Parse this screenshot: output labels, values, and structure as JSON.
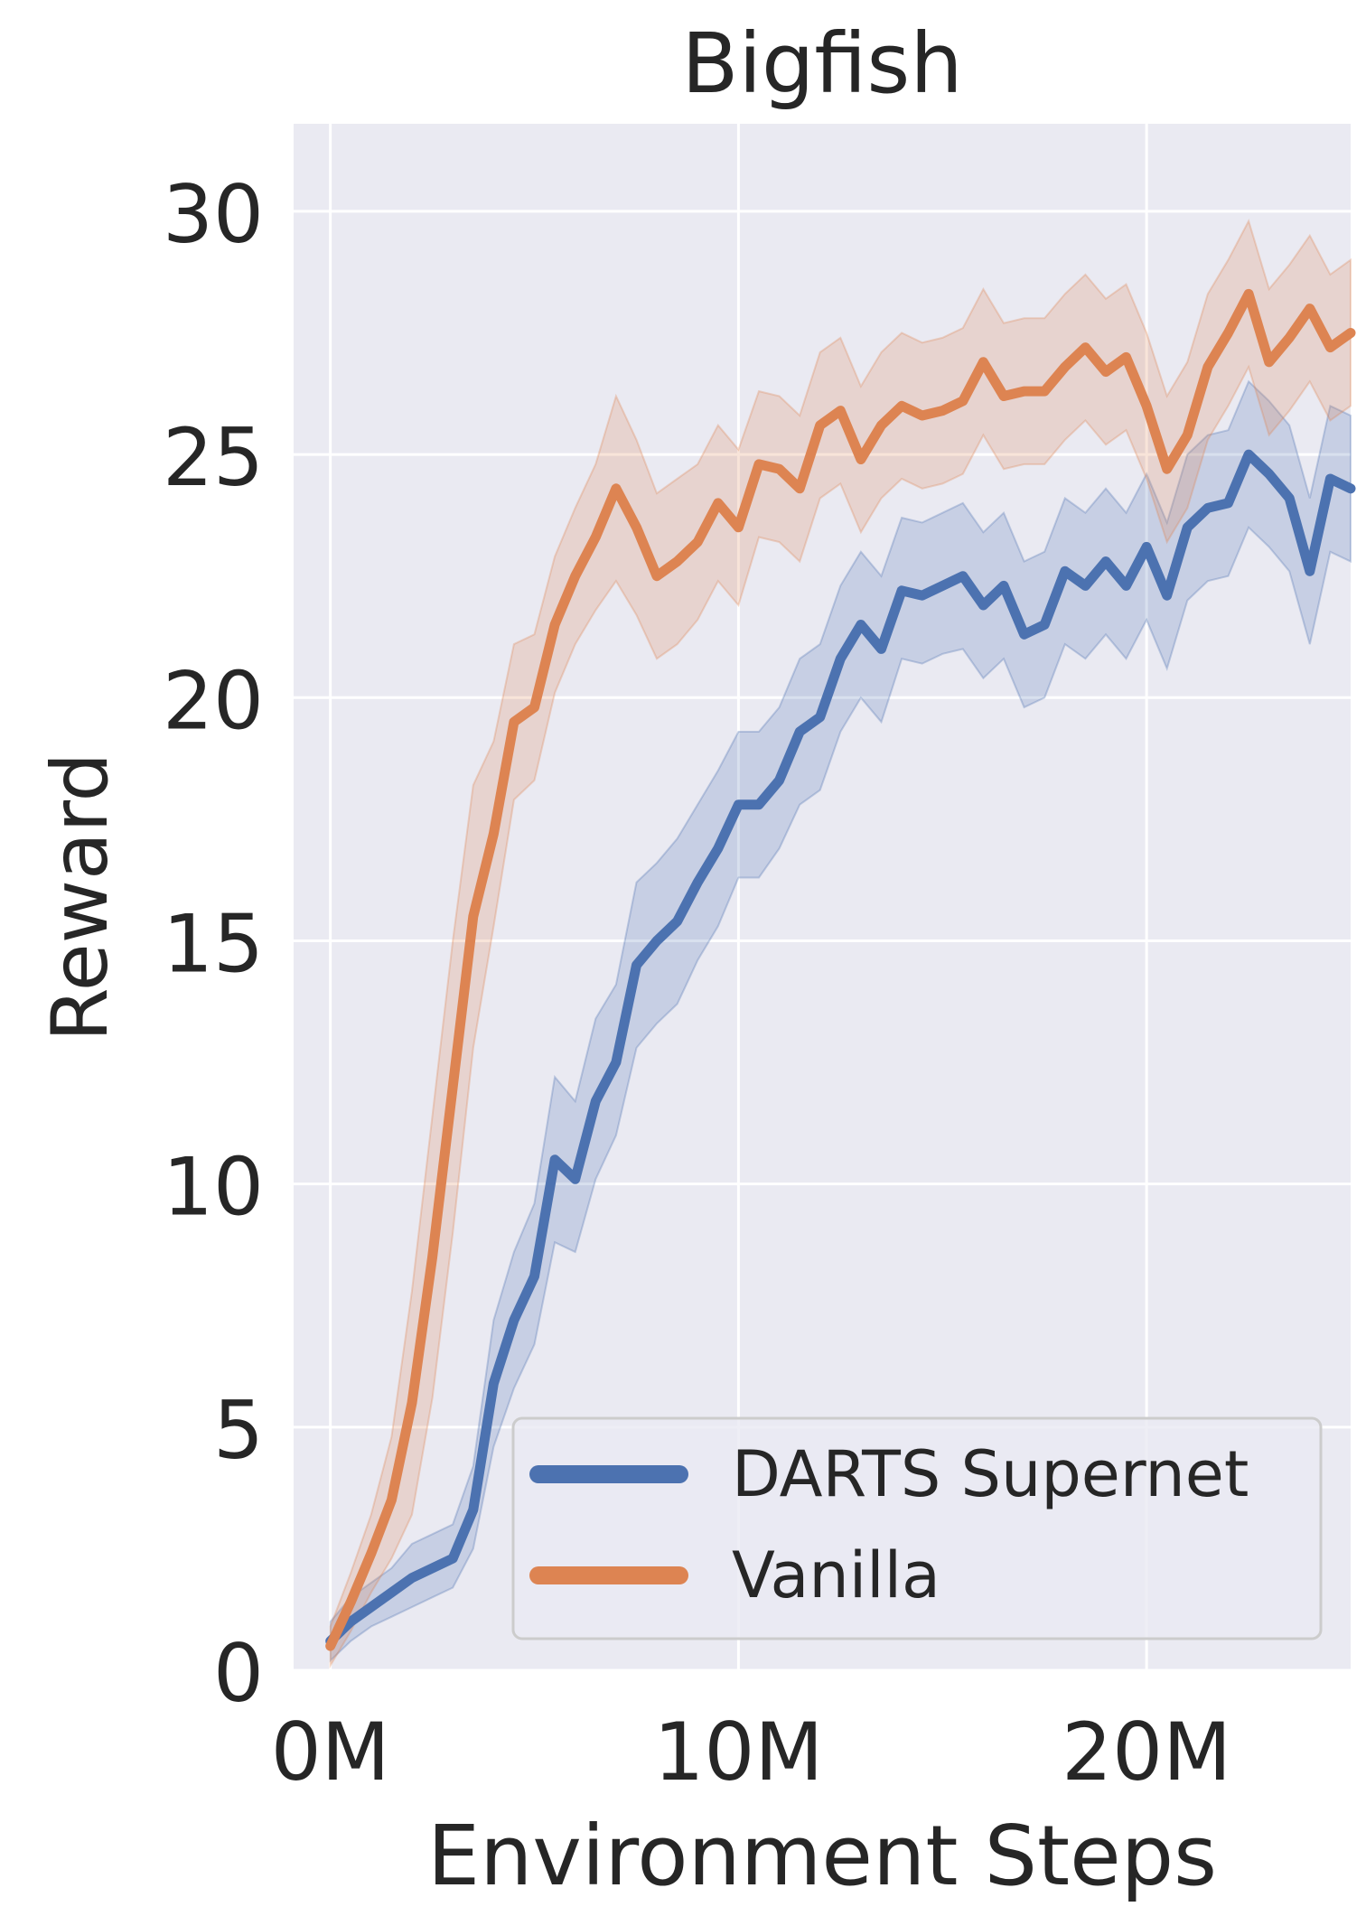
{
  "chart_data": {
    "type": "line",
    "title": "Bigfish",
    "xlabel": "Environment Steps",
    "ylabel": "Reward",
    "xlim": [
      -0.9,
      25
    ],
    "ylim": [
      0,
      31.8
    ],
    "x_ticks": [
      {
        "value": 0,
        "label": "0M"
      },
      {
        "value": 10,
        "label": "10M"
      },
      {
        "value": 20,
        "label": "20M"
      }
    ],
    "y_ticks": [
      {
        "value": 0,
        "label": "0"
      },
      {
        "value": 5,
        "label": "5"
      },
      {
        "value": 10,
        "label": "10"
      },
      {
        "value": 15,
        "label": "15"
      },
      {
        "value": 20,
        "label": "20"
      },
      {
        "value": 25,
        "label": "25"
      },
      {
        "value": 30,
        "label": "30"
      }
    ],
    "grid": true,
    "legend_position": "bottom-right",
    "series": [
      {
        "name": "DARTS Supernet",
        "color": "#4c72b0",
        "x": [
          0,
          0.5,
          1,
          1.5,
          2,
          2.5,
          3,
          3.5,
          4,
          4.5,
          5,
          5.5,
          6,
          6.5,
          7,
          7.5,
          8,
          8.5,
          9,
          9.5,
          10,
          10.5,
          11,
          11.5,
          12,
          12.5,
          13,
          13.5,
          14,
          14.5,
          15,
          15.5,
          16,
          16.5,
          17,
          17.5,
          18,
          18.5,
          19,
          19.5,
          20,
          20.5,
          21,
          21.5,
          22,
          22.5,
          23,
          23.5,
          24,
          24.5,
          25
        ],
        "y": [
          0.6,
          1.0,
          1.3,
          1.6,
          1.9,
          2.1,
          2.3,
          3.3,
          5.9,
          7.2,
          8.1,
          10.5,
          10.1,
          11.7,
          12.5,
          14.5,
          15.0,
          15.4,
          16.2,
          16.9,
          17.8,
          17.8,
          18.3,
          19.3,
          19.6,
          20.8,
          21.5,
          21.0,
          22.2,
          22.1,
          22.3,
          22.5,
          21.9,
          22.3,
          21.3,
          21.5,
          22.6,
          22.3,
          22.8,
          22.3,
          23.1,
          22.1,
          23.5,
          23.9,
          24.0,
          25.0,
          24.6,
          24.1,
          22.6,
          24.5,
          24.3
        ],
        "lower": [
          0.2,
          0.6,
          0.9,
          1.1,
          1.3,
          1.5,
          1.7,
          2.5,
          4.6,
          5.8,
          6.7,
          8.8,
          8.6,
          10.1,
          11.0,
          12.8,
          13.3,
          13.7,
          14.6,
          15.3,
          16.3,
          16.3,
          16.9,
          17.8,
          18.1,
          19.3,
          20.0,
          19.5,
          20.8,
          20.7,
          20.9,
          21.0,
          20.4,
          20.8,
          19.8,
          20.0,
          21.1,
          20.8,
          21.3,
          20.8,
          21.6,
          20.6,
          22.0,
          22.4,
          22.5,
          23.5,
          23.1,
          22.6,
          21.1,
          23.0,
          22.8
        ],
        "upper": [
          1.0,
          1.5,
          1.8,
          2.1,
          2.6,
          2.8,
          3.0,
          4.2,
          7.2,
          8.6,
          9.6,
          12.2,
          11.7,
          13.4,
          14.1,
          16.2,
          16.6,
          17.1,
          17.8,
          18.5,
          19.3,
          19.3,
          19.8,
          20.8,
          21.1,
          22.3,
          23.0,
          22.5,
          23.7,
          23.6,
          23.8,
          24.0,
          23.4,
          23.8,
          22.8,
          23.0,
          24.1,
          23.8,
          24.3,
          23.8,
          24.6,
          23.6,
          25.0,
          25.4,
          25.5,
          26.5,
          26.1,
          25.6,
          24.1,
          26.0,
          25.8
        ]
      },
      {
        "name": "Vanilla",
        "color": "#dd8452",
        "x": [
          0,
          0.5,
          1,
          1.5,
          2,
          2.5,
          3,
          3.5,
          4,
          4.5,
          5,
          5.5,
          6,
          6.5,
          7,
          7.5,
          8,
          8.5,
          9,
          9.5,
          10,
          10.5,
          11,
          11.5,
          12,
          12.5,
          13,
          13.5,
          14,
          14.5,
          15,
          15.5,
          16,
          16.5,
          17,
          17.5,
          18,
          18.5,
          19,
          19.5,
          20,
          20.5,
          21,
          21.5,
          22,
          22.5,
          23,
          23.5,
          24,
          24.5,
          25
        ],
        "y": [
          0.5,
          1.4,
          2.4,
          3.5,
          5.5,
          8.5,
          12.0,
          15.5,
          17.2,
          19.5,
          19.8,
          21.5,
          22.5,
          23.3,
          24.3,
          23.5,
          22.5,
          22.8,
          23.2,
          24.0,
          23.5,
          24.8,
          24.7,
          24.3,
          25.6,
          25.9,
          24.9,
          25.6,
          26.0,
          25.8,
          25.9,
          26.1,
          26.9,
          26.2,
          26.3,
          26.3,
          26.8,
          27.2,
          26.7,
          27.0,
          26.0,
          24.7,
          25.4,
          26.8,
          27.5,
          28.3,
          26.9,
          27.4,
          28.0,
          27.2,
          27.5
        ],
        "lower": [
          0.1,
          0.8,
          1.6,
          2.3,
          3.2,
          5.6,
          9.0,
          12.8,
          15.3,
          17.9,
          18.3,
          20.1,
          21.1,
          21.8,
          22.4,
          21.7,
          20.8,
          21.1,
          21.6,
          22.4,
          21.9,
          23.3,
          23.2,
          22.8,
          24.1,
          24.4,
          23.4,
          24.1,
          24.5,
          24.3,
          24.4,
          24.6,
          25.4,
          24.7,
          24.8,
          24.8,
          25.3,
          25.7,
          25.2,
          25.5,
          24.5,
          23.2,
          23.9,
          25.3,
          26.0,
          26.8,
          25.4,
          25.9,
          26.5,
          25.7,
          26.0
        ],
        "upper": [
          0.9,
          2.0,
          3.2,
          4.8,
          7.8,
          11.4,
          15.0,
          18.2,
          19.1,
          21.1,
          21.3,
          22.9,
          23.9,
          24.8,
          26.2,
          25.3,
          24.2,
          24.5,
          24.8,
          25.6,
          25.1,
          26.3,
          26.2,
          25.8,
          27.1,
          27.4,
          26.4,
          27.1,
          27.5,
          27.3,
          27.4,
          27.6,
          28.4,
          27.7,
          27.8,
          27.8,
          28.3,
          28.7,
          28.2,
          28.5,
          27.5,
          26.2,
          26.9,
          28.3,
          29.0,
          29.8,
          28.4,
          28.9,
          29.5,
          28.7,
          29.0
        ]
      }
    ]
  }
}
